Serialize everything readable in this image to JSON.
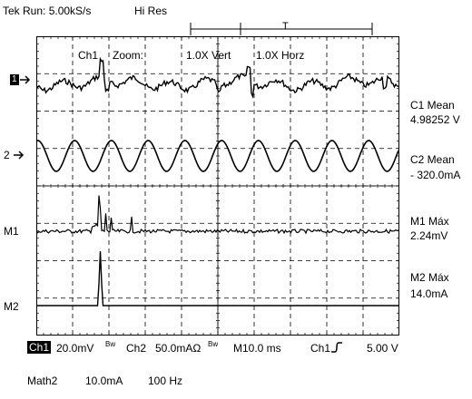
{
  "status": {
    "run": "Tek Run: 5.00kS/s",
    "mode": "Hi Res"
  },
  "trigger_marker": "T",
  "zoom": {
    "ch": "Ch1",
    "label": "Zoom:",
    "vert": "1.0X  Vert",
    "horz": "1.0X  Horz"
  },
  "markers": {
    "ch1": "1",
    "ch2": "2",
    "m1": "M1",
    "m2": "M2"
  },
  "readouts": {
    "c1_label": "C1 Mean",
    "c1_value": "4.98252 V",
    "c2_label": "C2 Mean",
    "c2_value": "- 320.0mA",
    "m1_label": "M1 Máx",
    "m1_value": "2.24mV",
    "m2_label": "M2 Máx",
    "m2_value": "14.0mA"
  },
  "bottom": {
    "ch1": "Ch1",
    "ch1_scale": "20.0mV",
    "bw1": "Bw",
    "ch2": "Ch2",
    "ch2_scale": "50.0mAΩ",
    "bw2": "Bw",
    "time": "M10.0 ms",
    "trig_ch": "Ch1",
    "trig_level": "5.00 V"
  },
  "math": {
    "label": "Math2",
    "scale": "10.0mA",
    "freq": "100 Hz"
  },
  "colors": {
    "trace": "#000000",
    "grid": "#000000",
    "background": "#ffffff"
  },
  "icons": {
    "marker_arrow": "right-arrow-icon",
    "trigger_slope": "rising-edge-icon"
  }
}
